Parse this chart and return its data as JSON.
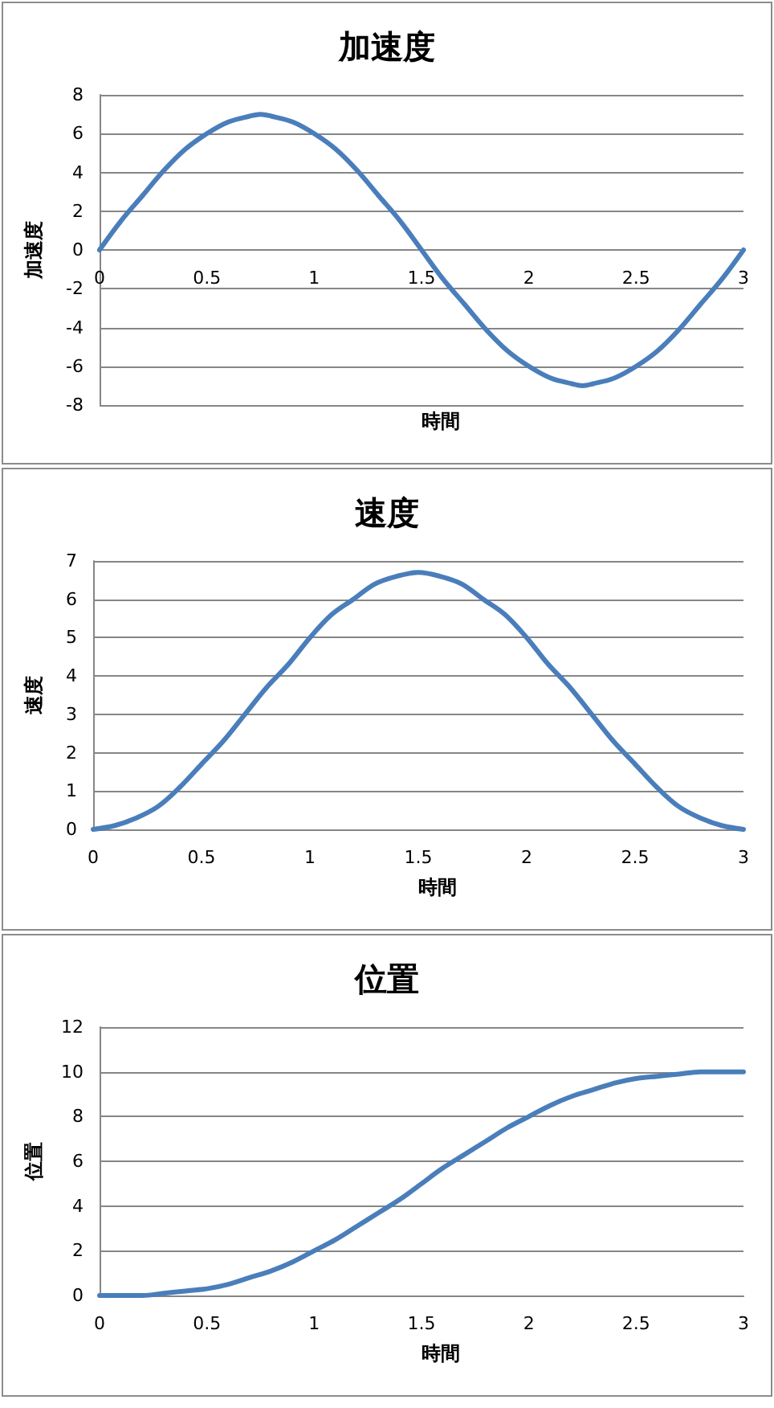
{
  "chart_data": [
    {
      "type": "line",
      "title": "加速度",
      "xlabel": "時間",
      "ylabel": "加速度",
      "x": [
        0,
        0.1,
        0.2,
        0.3,
        0.4,
        0.5,
        0.6,
        0.7,
        0.75,
        0.8,
        0.9,
        1,
        1.1,
        1.2,
        1.3,
        1.4,
        1.5,
        1.6,
        1.7,
        1.8,
        1.9,
        2,
        2.1,
        2.2,
        2.25,
        2.3,
        2.4,
        2.5,
        2.6,
        2.7,
        2.8,
        2.9,
        3
      ],
      "series": [
        {
          "color": "#4a7ebb",
          "values": [
            0,
            1.5,
            2.8,
            4.1,
            5.2,
            6.0,
            6.6,
            6.9,
            7.0,
            6.9,
            6.6,
            6.0,
            5.2,
            4.1,
            2.8,
            1.5,
            0,
            -1.5,
            -2.8,
            -4.1,
            -5.2,
            -6.0,
            -6.6,
            -6.9,
            -7.0,
            -6.9,
            -6.6,
            -6.0,
            -5.2,
            -4.1,
            -2.8,
            -1.5,
            0
          ]
        }
      ],
      "xlim": [
        0,
        3
      ],
      "xticks": [
        0,
        0.5,
        1,
        1.5,
        2,
        2.5,
        3
      ],
      "ylim": [
        -8,
        8
      ],
      "yticks": [
        -8,
        -6,
        -4,
        -2,
        0,
        2,
        4,
        6,
        8
      ],
      "grid": "y"
    },
    {
      "type": "line",
      "title": "速度",
      "xlabel": "時間",
      "ylabel": "速度",
      "x": [
        0,
        0.1,
        0.2,
        0.3,
        0.4,
        0.5,
        0.6,
        0.7,
        0.8,
        0.9,
        1,
        1.1,
        1.2,
        1.3,
        1.4,
        1.5,
        1.6,
        1.7,
        1.8,
        1.9,
        2,
        2.1,
        2.2,
        2.3,
        2.4,
        2.5,
        2.6,
        2.7,
        2.8,
        2.9,
        3
      ],
      "series": [
        {
          "color": "#4a7ebb",
          "values": [
            0,
            0.1,
            0.3,
            0.6,
            1.1,
            1.7,
            2.3,
            3.0,
            3.7,
            4.3,
            5.0,
            5.6,
            6.0,
            6.4,
            6.6,
            6.7,
            6.6,
            6.4,
            6.0,
            5.6,
            5.0,
            4.3,
            3.7,
            3.0,
            2.3,
            1.7,
            1.1,
            0.6,
            0.3,
            0.1,
            0
          ]
        }
      ],
      "xlim": [
        0,
        3
      ],
      "xticks": [
        0,
        0.5,
        1,
        1.5,
        2,
        2.5,
        3
      ],
      "ylim": [
        0,
        7
      ],
      "yticks": [
        0,
        1,
        2,
        3,
        4,
        5,
        6,
        7
      ],
      "grid": "y"
    },
    {
      "type": "line",
      "title": "位置",
      "xlabel": "時間",
      "ylabel": "位置",
      "x": [
        0,
        0.1,
        0.2,
        0.3,
        0.4,
        0.5,
        0.6,
        0.7,
        0.8,
        0.9,
        1,
        1.1,
        1.2,
        1.3,
        1.4,
        1.5,
        1.6,
        1.7,
        1.8,
        1.9,
        2,
        2.1,
        2.2,
        2.3,
        2.4,
        2.5,
        2.6,
        2.7,
        2.8,
        2.9,
        3
      ],
      "series": [
        {
          "color": "#4a7ebb",
          "values": [
            0,
            0,
            0,
            0.1,
            0.2,
            0.3,
            0.5,
            0.8,
            1.1,
            1.5,
            2.0,
            2.5,
            3.1,
            3.7,
            4.3,
            5.0,
            5.7,
            6.3,
            6.9,
            7.5,
            8.0,
            8.5,
            8.9,
            9.2,
            9.5,
            9.7,
            9.8,
            9.9,
            10.0,
            10.0,
            10.0
          ]
        }
      ],
      "xlim": [
        0,
        3
      ],
      "xticks": [
        0,
        0.5,
        1,
        1.5,
        2,
        2.5,
        3
      ],
      "ylim": [
        0,
        12
      ],
      "yticks": [
        0,
        2,
        4,
        6,
        8,
        10,
        12
      ],
      "grid": "y"
    }
  ]
}
